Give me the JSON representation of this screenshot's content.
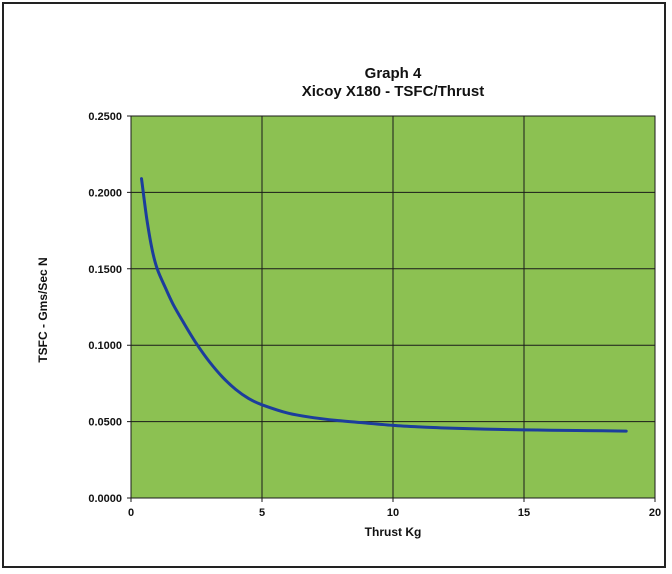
{
  "chart_data": {
    "type": "line",
    "title": "Graph 4",
    "subtitle": "Xicoy X180 - TSFC/Thrust",
    "xlabel": "Thrust Kg",
    "ylabel": "TSFC - Gms/Sec N",
    "xlim": [
      0,
      20
    ],
    "ylim": [
      0,
      0.25
    ],
    "x_ticks": [
      "0",
      "5",
      "10",
      "15",
      "20"
    ],
    "y_ticks": [
      "0.0000",
      "0.0500",
      "0.1000",
      "0.1500",
      "0.2000",
      "0.2500"
    ],
    "grid": true,
    "legend": "none",
    "series": [
      {
        "x": [
          0.4,
          0.6,
          0.8,
          1.0,
          1.3,
          1.6,
          2.0,
          2.5,
          3.0,
          3.5,
          4.0,
          4.5,
          5.0,
          6.0,
          7.0,
          8.0,
          9.0,
          10.0,
          11.0,
          12.0,
          13.0,
          14.0,
          15.0,
          16.0,
          17.0,
          18.0,
          18.9
        ],
        "y": [
          0.209,
          0.183,
          0.163,
          0.15,
          0.138,
          0.127,
          0.115,
          0.101,
          0.089,
          0.079,
          0.071,
          0.065,
          0.061,
          0.0555,
          0.0525,
          0.0505,
          0.049,
          0.0475,
          0.0465,
          0.0458,
          0.0453,
          0.0449,
          0.0446,
          0.0444,
          0.0442,
          0.044,
          0.0438
        ]
      }
    ],
    "colors": {
      "plot_background": "#8cc152",
      "line": "#1c3d9c",
      "grid": "#1a1a1a"
    }
  }
}
